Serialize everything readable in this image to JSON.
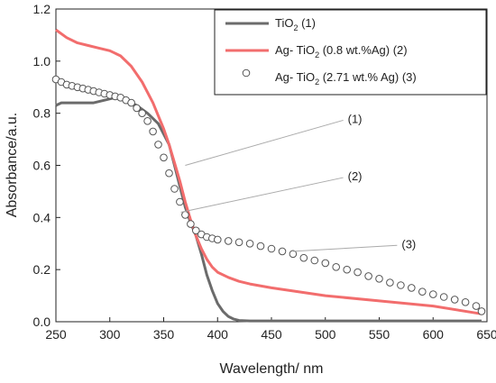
{
  "chart_data": {
    "type": "line",
    "xlabel": "Wavelength/ nm",
    "ylabel": "Absorbance/a.u.",
    "xlim": [
      250,
      650
    ],
    "ylim": [
      0,
      1.2
    ],
    "xticks": [
      "250",
      "300",
      "350",
      "400",
      "450",
      "500",
      "550",
      "600",
      "650"
    ],
    "yticks": [
      "0.0",
      "0.2",
      "0.4",
      "0.6",
      "0.8",
      "1.0",
      "1.2"
    ],
    "grid": false,
    "legend_position": "top-right",
    "series": [
      {
        "name": "TiO2 (1)",
        "legend_parts": [
          "TiO",
          "2",
          " (1)"
        ],
        "style": "line",
        "color": "#6b6b6b",
        "x": [
          250,
          255,
          270,
          285,
          295,
          305,
          315,
          325,
          335,
          345,
          355,
          360,
          365,
          370,
          375,
          380,
          385,
          390,
          395,
          400,
          405,
          410,
          415,
          420,
          430,
          450,
          500,
          550,
          600,
          645
        ],
        "y": [
          0.83,
          0.84,
          0.84,
          0.84,
          0.85,
          0.86,
          0.85,
          0.83,
          0.8,
          0.76,
          0.68,
          0.6,
          0.52,
          0.44,
          0.38,
          0.33,
          0.26,
          0.18,
          0.12,
          0.07,
          0.04,
          0.02,
          0.01,
          0.005,
          0.003,
          0.003,
          0.003,
          0.003,
          0.003,
          0.003
        ]
      },
      {
        "name": "Ag- TiO2 (0.8 wt.%Ag) (2)",
        "legend_parts": [
          "Ag- TiO",
          "2",
          " (0.8 wt.%Ag) (2)"
        ],
        "style": "line",
        "color": "#f26d6d",
        "x": [
          250,
          260,
          270,
          280,
          290,
          300,
          310,
          320,
          330,
          340,
          350,
          355,
          360,
          365,
          370,
          375,
          380,
          385,
          390,
          395,
          400,
          410,
          420,
          430,
          450,
          500,
          550,
          600,
          645
        ],
        "y": [
          1.12,
          1.09,
          1.07,
          1.06,
          1.05,
          1.04,
          1.02,
          0.98,
          0.92,
          0.84,
          0.74,
          0.68,
          0.61,
          0.54,
          0.46,
          0.39,
          0.33,
          0.28,
          0.24,
          0.21,
          0.19,
          0.17,
          0.155,
          0.145,
          0.13,
          0.1,
          0.08,
          0.06,
          0.03
        ]
      },
      {
        "name": "Ag- TiO2 (2.71 wt.% Ag) (3)",
        "legend_parts": [
          "Ag- TiO",
          "2",
          " (2.71 wt.% Ag) (3)"
        ],
        "style": "marker",
        "color": "#555555",
        "x": [
          250,
          255,
          260,
          265,
          270,
          275,
          280,
          285,
          290,
          295,
          300,
          305,
          310,
          315,
          320,
          325,
          330,
          335,
          340,
          345,
          350,
          355,
          360,
          365,
          370,
          375,
          380,
          385,
          390,
          395,
          400,
          410,
          420,
          430,
          440,
          450,
          460,
          470,
          480,
          490,
          500,
          510,
          520,
          530,
          540,
          550,
          560,
          570,
          580,
          590,
          600,
          610,
          620,
          630,
          640,
          645
        ],
        "y": [
          0.93,
          0.92,
          0.91,
          0.905,
          0.9,
          0.895,
          0.89,
          0.885,
          0.88,
          0.875,
          0.87,
          0.865,
          0.86,
          0.85,
          0.84,
          0.82,
          0.8,
          0.77,
          0.73,
          0.68,
          0.63,
          0.57,
          0.51,
          0.46,
          0.41,
          0.375,
          0.35,
          0.335,
          0.325,
          0.32,
          0.315,
          0.31,
          0.305,
          0.3,
          0.29,
          0.28,
          0.27,
          0.26,
          0.245,
          0.235,
          0.225,
          0.21,
          0.2,
          0.19,
          0.175,
          0.165,
          0.15,
          0.14,
          0.13,
          0.115,
          0.105,
          0.095,
          0.085,
          0.075,
          0.06,
          0.04
        ]
      }
    ],
    "annotations": [
      {
        "text": "(1)",
        "x": 370,
        "y": 0.6,
        "tx": 525,
        "ty": 0.78
      },
      {
        "text": "(2)",
        "x": 366,
        "y": 0.42,
        "tx": 525,
        "ty": 0.56
      },
      {
        "text": "(3)",
        "x": 470,
        "y": 0.27,
        "tx": 575,
        "ty": 0.3
      }
    ]
  }
}
